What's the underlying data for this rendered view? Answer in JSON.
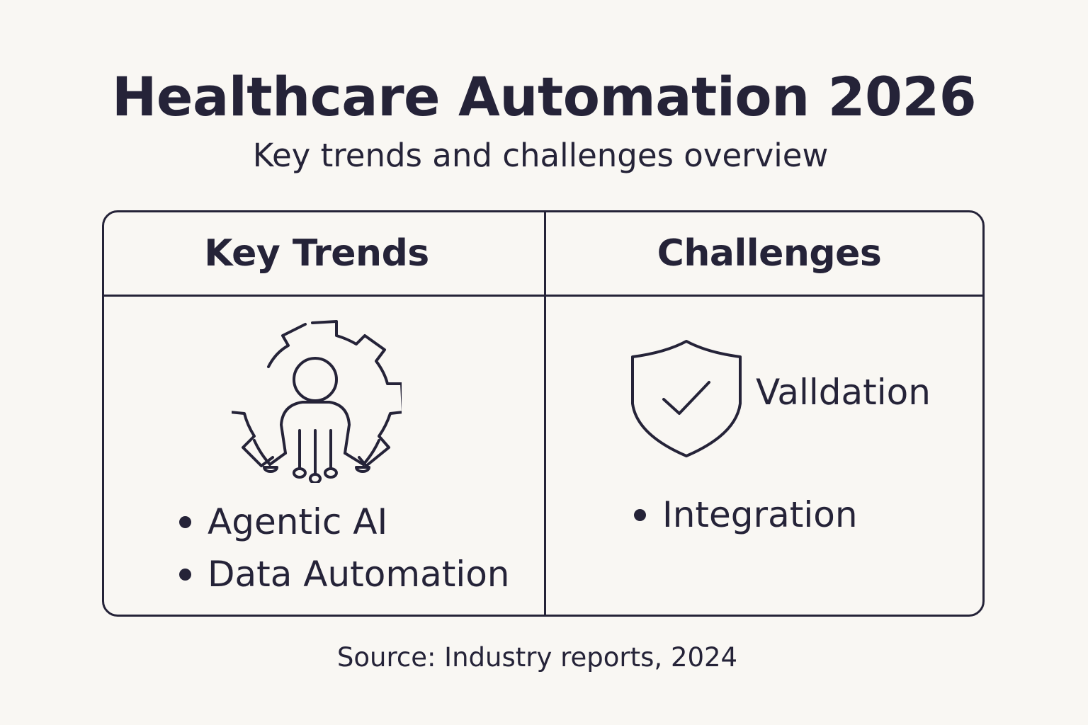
{
  "title": "Healthcare Automation 2026",
  "subtitle": "Key trends and challenges overview",
  "columns": {
    "trends": {
      "heading": "Key Trends",
      "icon": "gear-person-network-icon",
      "items": [
        "Agentic AI",
        "Data Automation"
      ]
    },
    "challenges": {
      "heading": "Challenges",
      "icon": "shield-check-icon",
      "icon_label": "Valldation",
      "items": [
        "Integration"
      ]
    }
  },
  "source": "Source: Industry reports, 2024",
  "colors": {
    "background": "#f9f7f3",
    "ink": "#252338"
  }
}
